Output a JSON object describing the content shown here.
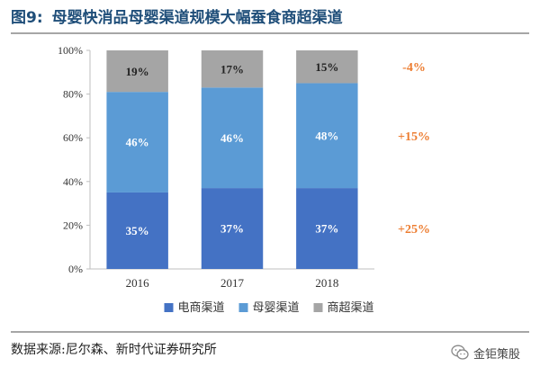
{
  "figure": {
    "number": "图9:",
    "title": "母婴快消品母婴渠道规模大幅蚕食商超渠道"
  },
  "chart_data": {
    "type": "bar",
    "stacked": true,
    "categories": [
      "2016",
      "2017",
      "2018"
    ],
    "series": [
      {
        "name": "电商渠道",
        "values": [
          35,
          37,
          37
        ],
        "labels": [
          "35%",
          "37%",
          "37%"
        ],
        "color": "#4472c4"
      },
      {
        "name": "母婴渠道",
        "values": [
          46,
          46,
          48
        ],
        "labels": [
          "46%",
          "46%",
          "48%"
        ],
        "color": "#5b9bd5"
      },
      {
        "name": "商超渠道",
        "values": [
          19,
          17,
          15
        ],
        "labels": [
          "19%",
          "17%",
          "15%"
        ],
        "color": "#a5a5a5"
      }
    ],
    "yticks": [
      "0%",
      "20%",
      "40%",
      "60%",
      "80%",
      "100%"
    ],
    "ylim": [
      0,
      100
    ],
    "legend_position": "bottom",
    "annotations": [
      "+25%",
      "+15%",
      "-4%"
    ],
    "annotation_color": "#ed7d31"
  },
  "source": "数据来源:尼尔森、新时代证券研究所",
  "watermark": "金钜策股"
}
